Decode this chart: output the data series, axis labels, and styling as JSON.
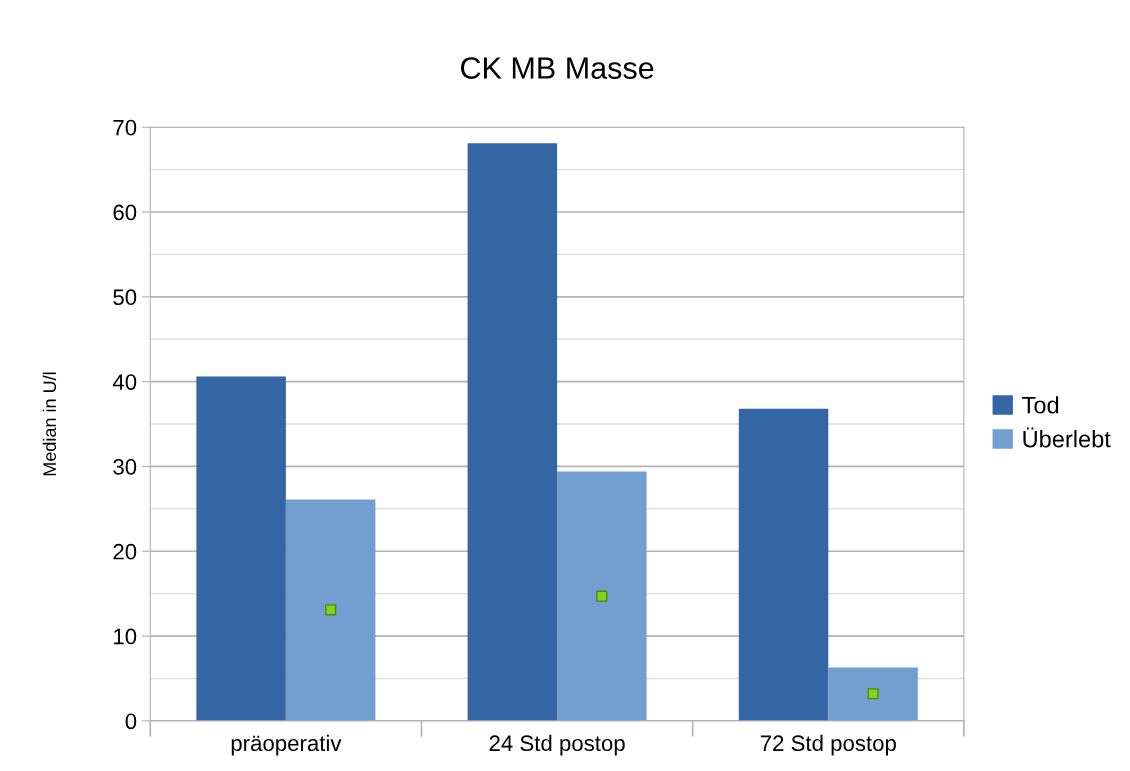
{
  "chart_data": {
    "type": "bar",
    "title": "CK MB Masse",
    "ylabel": "Median in U/l",
    "categories": [
      "präoperativ",
      "24 Std postop",
      "72 Std postop"
    ],
    "series": [
      {
        "name": "Tod",
        "color": "#3465a4",
        "values": [
          40.6,
          68.1,
          36.8
        ]
      },
      {
        "name": "Überlebt",
        "color": "#729fcf",
        "values": [
          26.1,
          29.4,
          6.3
        ]
      },
      {
        "type": "scatter",
        "color": "#81d41a",
        "x": [
          "präoperativ",
          "24 Std postop",
          "72 Std postop"
        ],
        "values": [
          13.1,
          14.7,
          3.2
        ],
        "marker": "square"
      }
    ],
    "ylim": [
      0,
      70
    ],
    "yticks": [
      0,
      10,
      20,
      30,
      40,
      50,
      60,
      70
    ],
    "grid": "y",
    "legend": "right"
  }
}
